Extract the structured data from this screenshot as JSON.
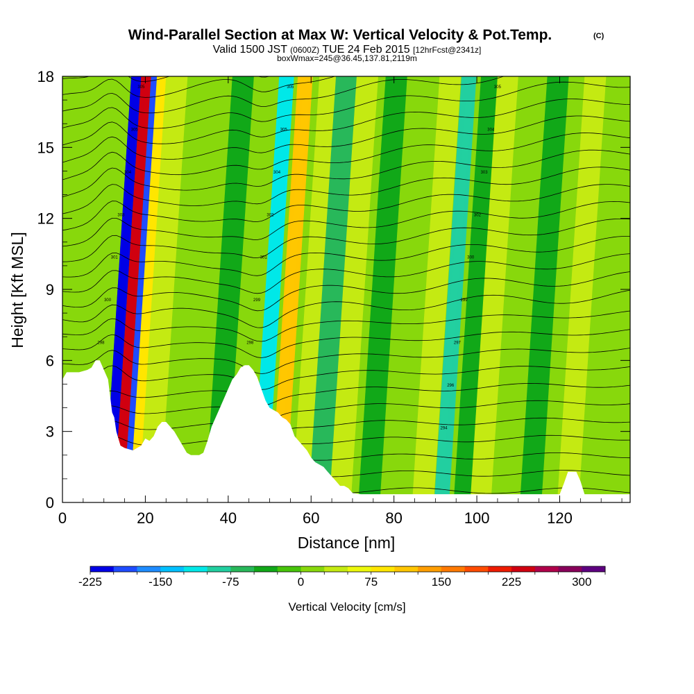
{
  "chart_data": {
    "type": "heatmap",
    "title": "Wind-Parallel Section at Max W: Vertical Velocity & Pot.Temp.",
    "title_mark": "(C)",
    "subtitle_parts": [
      "Valid 1500 JST",
      "(0600Z)",
      "TUE 24 Feb 2015",
      "[12hrFcst@2341z]"
    ],
    "subtitle2": "boxWmax=245@36.45,137.81,2119m",
    "xlabel": "Distance [nm]",
    "ylabel": "Height [Kft MSL]",
    "xlim": [
      0,
      137
    ],
    "ylim": [
      0,
      18
    ],
    "x_ticks": [
      "0",
      "20",
      "40",
      "60",
      "80",
      "100",
      "120"
    ],
    "y_ticks": [
      "0",
      "3",
      "6",
      "9",
      "12",
      "15",
      "18"
    ],
    "colorbar": {
      "label": "Vertical Velocity [cm/s]",
      "tick_labels": [
        "-225",
        "-150",
        "-75",
        "0",
        "75",
        "150",
        "225",
        "300"
      ],
      "range": [
        -225,
        325
      ],
      "step": 25,
      "colors": [
        "#0000e6",
        "#1f4cff",
        "#1e8cff",
        "#00c0ff",
        "#00e8e8",
        "#22cfa0",
        "#28b85a",
        "#11a818",
        "#47c40a",
        "#88d80c",
        "#c4ea12",
        "#ecf80c",
        "#ffe600",
        "#ffc600",
        "#ff9e00",
        "#ff7a00",
        "#ff4c00",
        "#ee1c00",
        "#d00010",
        "#b0004a",
        "#88005a",
        "#5e0080"
      ]
    },
    "velocity_features": [
      {
        "x": 12.6,
        "w": -50
      },
      {
        "x": 11.2,
        "w": -210
      },
      {
        "x": 13.6,
        "w": 245
      },
      {
        "x": 16.0,
        "w": -180
      },
      {
        "x": 18.0,
        "w": 90
      },
      {
        "x": 21.0,
        "w": 40
      },
      {
        "x": 27.0,
        "w": 20
      },
      {
        "x": 37.0,
        "w": -40
      },
      {
        "x": 47.5,
        "w": -110
      },
      {
        "x": 52.0,
        "w": 120
      },
      {
        "x": 58.0,
        "w": 40
      },
      {
        "x": 62.0,
        "w": -60
      },
      {
        "x": 67.0,
        "w": 30
      },
      {
        "x": 74.0,
        "w": -30
      },
      {
        "x": 80.0,
        "w": 20
      },
      {
        "x": 87.0,
        "w": 30
      },
      {
        "x": 91.5,
        "w": -100
      },
      {
        "x": 97.0,
        "w": -40
      },
      {
        "x": 101.0,
        "w": 30
      },
      {
        "x": 106.0,
        "w": 20
      },
      {
        "x": 113.0,
        "w": -30
      },
      {
        "x": 122.0,
        "w": 25
      },
      {
        "x": 130.0,
        "w": 20
      }
    ],
    "terrain": [
      [
        0,
        5.2
      ],
      [
        1,
        5.5
      ],
      [
        4,
        5.5
      ],
      [
        6,
        5.6
      ],
      [
        7,
        5.7
      ],
      [
        8,
        6.0
      ],
      [
        9,
        6.0
      ],
      [
        10,
        5.6
      ],
      [
        11,
        5.2
      ],
      [
        12,
        3.8
      ],
      [
        12.5,
        3.6
      ],
      [
        13,
        3.0
      ],
      [
        14,
        2.4
      ],
      [
        15,
        2.3
      ],
      [
        17,
        2.2
      ],
      [
        19,
        2.4
      ],
      [
        20,
        2.7
      ],
      [
        21,
        2.6
      ],
      [
        22,
        2.8
      ],
      [
        23,
        3.2
      ],
      [
        24,
        3.4
      ],
      [
        25,
        3.4
      ],
      [
        26,
        3.2
      ],
      [
        27,
        3.0
      ],
      [
        28,
        2.7
      ],
      [
        29,
        2.4
      ],
      [
        30,
        2.1
      ],
      [
        31,
        2.0
      ],
      [
        33,
        2.0
      ],
      [
        34,
        2.1
      ],
      [
        35,
        2.6
      ],
      [
        36,
        3.2
      ],
      [
        37,
        3.6
      ],
      [
        38,
        4.0
      ],
      [
        39,
        4.4
      ],
      [
        40,
        4.8
      ],
      [
        41,
        5.2
      ],
      [
        42,
        5.4
      ],
      [
        43,
        5.7
      ],
      [
        44,
        5.8
      ],
      [
        45,
        5.8
      ],
      [
        46,
        5.6
      ],
      [
        47,
        5.3
      ],
      [
        48,
        4.8
      ],
      [
        49,
        4.3
      ],
      [
        50,
        4.0
      ],
      [
        51,
        3.9
      ],
      [
        52,
        3.8
      ],
      [
        53,
        3.6
      ],
      [
        54,
        3.5
      ],
      [
        55,
        3.3
      ],
      [
        56,
        2.8
      ],
      [
        57,
        2.6
      ],
      [
        58,
        2.4
      ],
      [
        59,
        2.2
      ],
      [
        60,
        1.9
      ],
      [
        61,
        1.7
      ],
      [
        62,
        1.6
      ],
      [
        63,
        1.5
      ],
      [
        64,
        1.3
      ],
      [
        65,
        1.1
      ],
      [
        66,
        0.9
      ],
      [
        67,
        0.7
      ],
      [
        68,
        0.7
      ],
      [
        69,
        0.6
      ],
      [
        70,
        0.4
      ],
      [
        72,
        0.35
      ],
      [
        120,
        0.35
      ],
      [
        121,
        0.8
      ],
      [
        122,
        1.3
      ],
      [
        124,
        1.3
      ],
      [
        125,
        0.9
      ],
      [
        126,
        0.35
      ],
      [
        137,
        0.35
      ]
    ],
    "contour_labels": [
      "305",
      "305",
      "305",
      "305",
      "305",
      "304",
      "304",
      "304",
      "303",
      "303",
      "302",
      "302",
      "301",
      "301",
      "300",
      "300",
      "299",
      "299",
      "298",
      "298",
      "297",
      "297",
      "296",
      "296",
      "295",
      "295",
      "294"
    ]
  }
}
